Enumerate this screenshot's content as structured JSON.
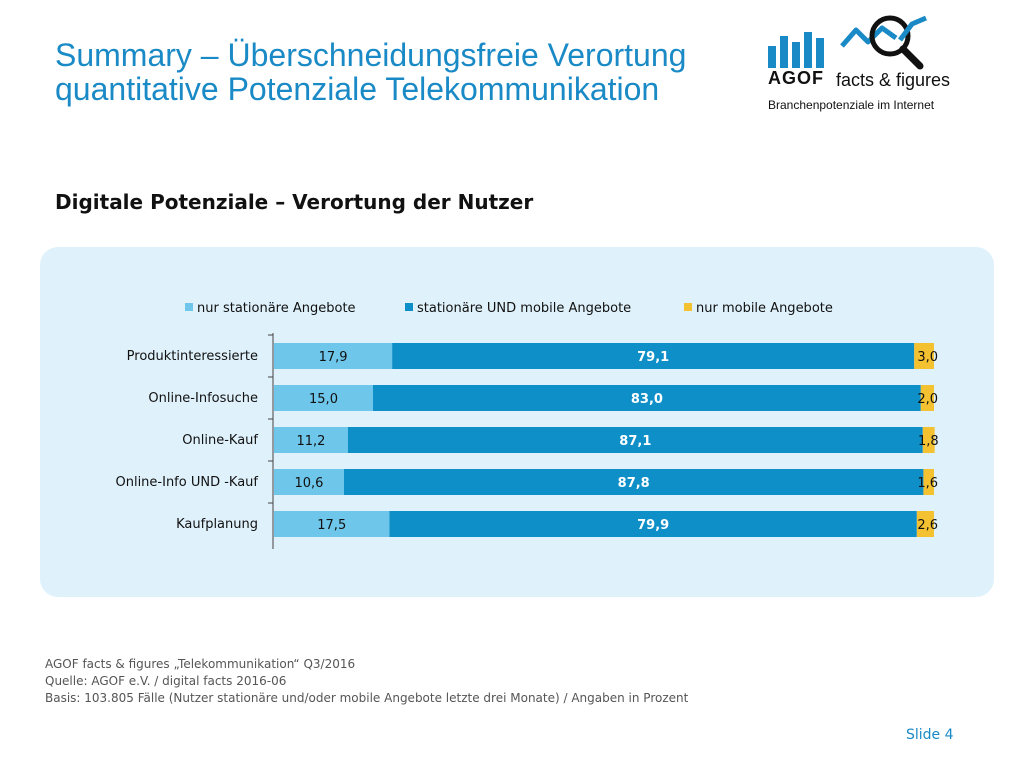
{
  "header": {
    "title_line1": "Summary – Überschneidungsfreie Verortung",
    "title_line2": "quantitative Potenziale Telekommunikation"
  },
  "logo": {
    "brand": "AGOF",
    "name": "facts & figures",
    "tagline": "Branchenpotenziale im Internet",
    "icon": "magnifier-bar-chart-icon",
    "colors": {
      "bars": "#1a8ac6",
      "line": "#1a8ac6",
      "glass": "#111111"
    }
  },
  "subtitle": "Digitale Potenziale – Verortung der Nutzer",
  "chart_data": {
    "type": "bar",
    "orientation": "horizontal",
    "stacked": true,
    "legend_position": "top",
    "grid": false,
    "categories": [
      "Produktinteressierte",
      "Online-Infosuche",
      "Online-Kauf",
      "Online-Info UND -Kauf",
      "Kaufplanung"
    ],
    "series": [
      {
        "name": "nur stationäre Angebote",
        "color": "#6ec6ea",
        "values": [
          17.9,
          15.0,
          11.2,
          10.6,
          17.5
        ],
        "labels": [
          "17,9",
          "15,0",
          "11,2",
          "10,6",
          "17,5"
        ]
      },
      {
        "name": "stationäre UND mobile Angebote",
        "color": "#0f8fc8",
        "values": [
          79.1,
          83.0,
          87.1,
          87.8,
          79.9
        ],
        "labels": [
          "79,1",
          "83,0",
          "87,1",
          "87,8",
          "79,9"
        ]
      },
      {
        "name": "nur mobile Angebote",
        "color": "#f4c130",
        "values": [
          3.0,
          2.0,
          1.8,
          1.6,
          2.6
        ],
        "labels": [
          "3,0",
          "2,0",
          "1,8",
          "1,6",
          "2,6"
        ]
      }
    ],
    "xlim": [
      0,
      100
    ]
  },
  "footer": {
    "line1": "AGOF facts & figures „Telekommunikation“ Q3/2016",
    "line2": "Quelle: AGOF e.V. / digital facts 2016-06",
    "line3": "Basis: 103.805 Fälle (Nutzer stationäre und/oder mobile Angebote letzte drei Monate) / Angaben in Prozent"
  },
  "slide": "Slide 4"
}
